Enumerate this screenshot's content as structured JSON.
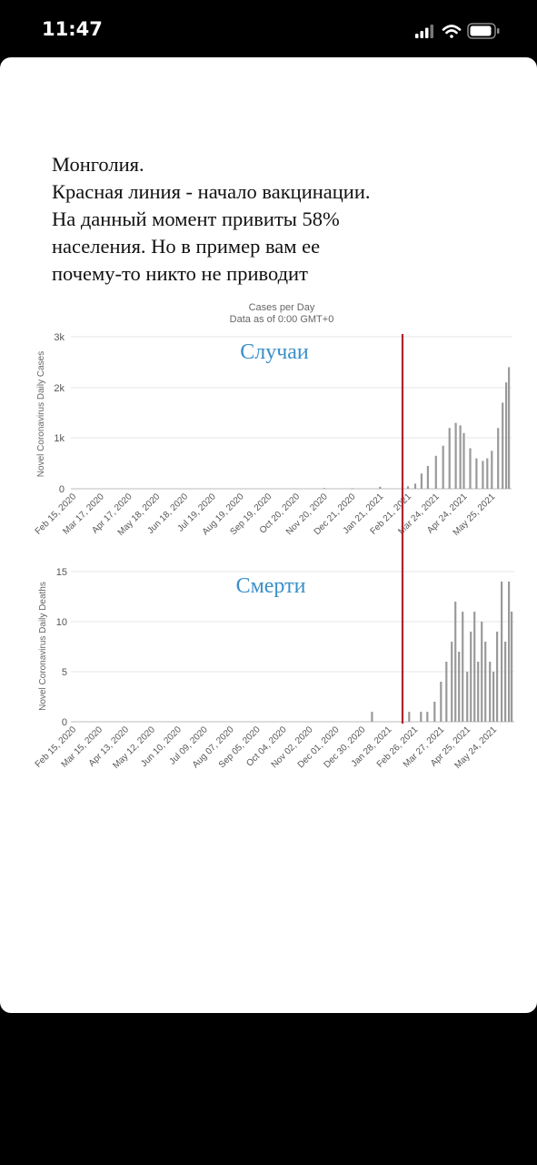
{
  "status_bar": {
    "time": "11:47"
  },
  "post": {
    "caption_lines": [
      "Монголия.",
      "Красная линия - начало вакцинации.",
      "На данный момент привиты 58%",
      "населения. Но в пример вам ее",
      "почему-то никто не приводит"
    ]
  },
  "colors": {
    "background": "#000000",
    "card": "#ffffff",
    "bars": "#9a9a9a",
    "vaccination_line": "#b0232a",
    "handwritten_label": "#3a8fc8"
  },
  "chart_data": [
    {
      "type": "bar",
      "title": "Cases per Day",
      "subtitle": "Data as of 0:00 GMT+0",
      "annotation": "Случаи",
      "ylabel": "Novel Coronavirus Daily Cases",
      "ylim": [
        0,
        3000
      ],
      "y_ticks": [
        "0",
        "1k",
        "2k",
        "3k"
      ],
      "x_ticks": [
        "Feb 15, 2020",
        "Mar 17, 2020",
        "Apr 17, 2020",
        "May 18, 2020",
        "Jun 18, 2020",
        "Jul 19, 2020",
        "Aug 19, 2020",
        "Sep 19, 2020",
        "Oct 20, 2020",
        "Nov 20, 2020",
        "Dec 21, 2020",
        "Jan 21, 2021",
        "Feb 21, 2021",
        "Mar 24, 2021",
        "Apr 24, 2021",
        "May 25, 2021"
      ],
      "vaccination_start": "Feb 21, 2021",
      "grid": true,
      "series": [
        {
          "x": [
            "Nov 20, 2020",
            "Dec 21, 2020",
            "Jan 21, 2021",
            "Feb 21, 2021",
            "Mar 1, 2021",
            "Mar 8, 2021",
            "Mar 15, 2021",
            "Mar 24, 2021",
            "Apr 1, 2021",
            "Apr 8, 2021",
            "Apr 15, 2021",
            "Apr 20, 2021",
            "Apr 24, 2021",
            "May 1, 2021",
            "May 8, 2021",
            "May 15, 2021",
            "May 20, 2021",
            "May 25, 2021",
            "Jun 1, 2021",
            "Jun 6, 2021",
            "Jun 10, 2021",
            "Jun 13, 2021"
          ],
          "values": [
            15,
            10,
            40,
            50,
            100,
            300,
            450,
            650,
            850,
            1200,
            1300,
            1250,
            1100,
            800,
            600,
            550,
            600,
            750,
            1200,
            1700,
            2100,
            2400
          ]
        }
      ]
    },
    {
      "type": "bar",
      "annotation": "Смерти",
      "ylabel": "Novel Coronavirus Daily Deaths",
      "ylim": [
        0,
        15
      ],
      "y_ticks": [
        "0",
        "5",
        "10",
        "15"
      ],
      "x_ticks": [
        "Feb 15, 2020",
        "Mar 15, 2020",
        "Apr 13, 2020",
        "May 12, 2020",
        "Jun 10, 2020",
        "Jul 09, 2020",
        "Aug 07, 2020",
        "Sep 05, 2020",
        "Oct 04, 2020",
        "Nov 02, 2020",
        "Dec 01, 2020",
        "Dec 30, 2020",
        "Jan 28, 2021",
        "Feb 26, 2021",
        "Mar 27, 2021",
        "Apr 25, 2021",
        "May 24, 2021"
      ],
      "vaccination_start": "Feb 21, 2021",
      "grid": true,
      "series": [
        {
          "x": [
            "Jan 10, 2021",
            "Feb 20, 2021",
            "Mar 5, 2021",
            "Mar 12, 2021",
            "Mar 20, 2021",
            "Mar 27, 2021",
            "Apr 2, 2021",
            "Apr 8, 2021",
            "Apr 12, 2021",
            "Apr 16, 2021",
            "Apr 20, 2021",
            "Apr 25, 2021",
            "Apr 29, 2021",
            "May 3, 2021",
            "May 7, 2021",
            "May 11, 2021",
            "May 15, 2021",
            "May 20, 2021",
            "May 24, 2021",
            "May 28, 2021",
            "Jun 2, 2021",
            "Jun 6, 2021",
            "Jun 10, 2021",
            "Jun 13, 2021"
          ],
          "values": [
            1,
            1,
            1,
            1,
            2,
            4,
            6,
            8,
            12,
            7,
            11,
            5,
            9,
            11,
            6,
            10,
            8,
            6,
            5,
            9,
            14,
            8,
            14,
            11
          ]
        }
      ]
    }
  ]
}
